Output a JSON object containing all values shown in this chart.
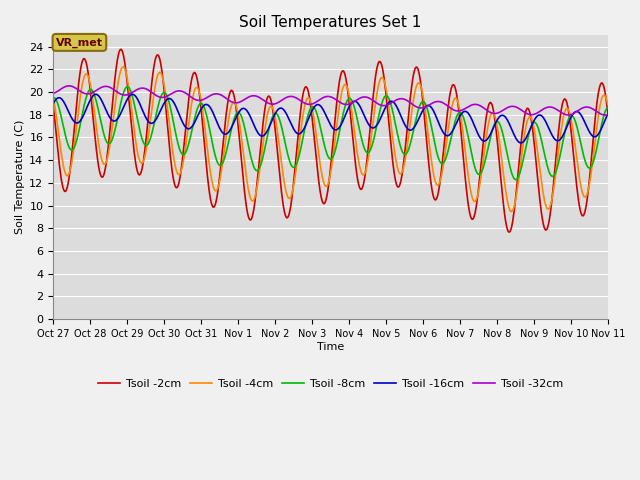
{
  "title": "Soil Temperatures Set 1",
  "ylabel": "Soil Temperature (C)",
  "xlabel": "Time",
  "ylim": [
    0,
    25
  ],
  "yticks": [
    0,
    2,
    4,
    6,
    8,
    10,
    12,
    14,
    16,
    18,
    20,
    22,
    24
  ],
  "fig_color": "#f0f0f0",
  "bg_color": "#dcdcdc",
  "annotation_text": "VR_met",
  "annotation_bg": "#d4c84a",
  "annotation_border": "#8b6914",
  "series": [
    {
      "label": "Tsoil -2cm",
      "color": "#cc0000"
    },
    {
      "label": "Tsoil -4cm",
      "color": "#ff8800"
    },
    {
      "label": "Tsoil -8cm",
      "color": "#00bb00"
    },
    {
      "label": "Tsoil -16cm",
      "color": "#0000cc"
    },
    {
      "label": "Tsoil -32cm",
      "color": "#aa00cc"
    }
  ],
  "xtick_labels": [
    "Oct 27",
    "Oct 28",
    "Oct 29",
    "Oct 30",
    "Oct 31",
    "Nov 1",
    "Nov 2",
    "Nov 3",
    "Nov 4",
    "Nov 5",
    "Nov 6",
    "Nov 7",
    "Nov 8",
    "Nov 9",
    "Nov 10",
    "Nov 11"
  ],
  "n_days": 15
}
